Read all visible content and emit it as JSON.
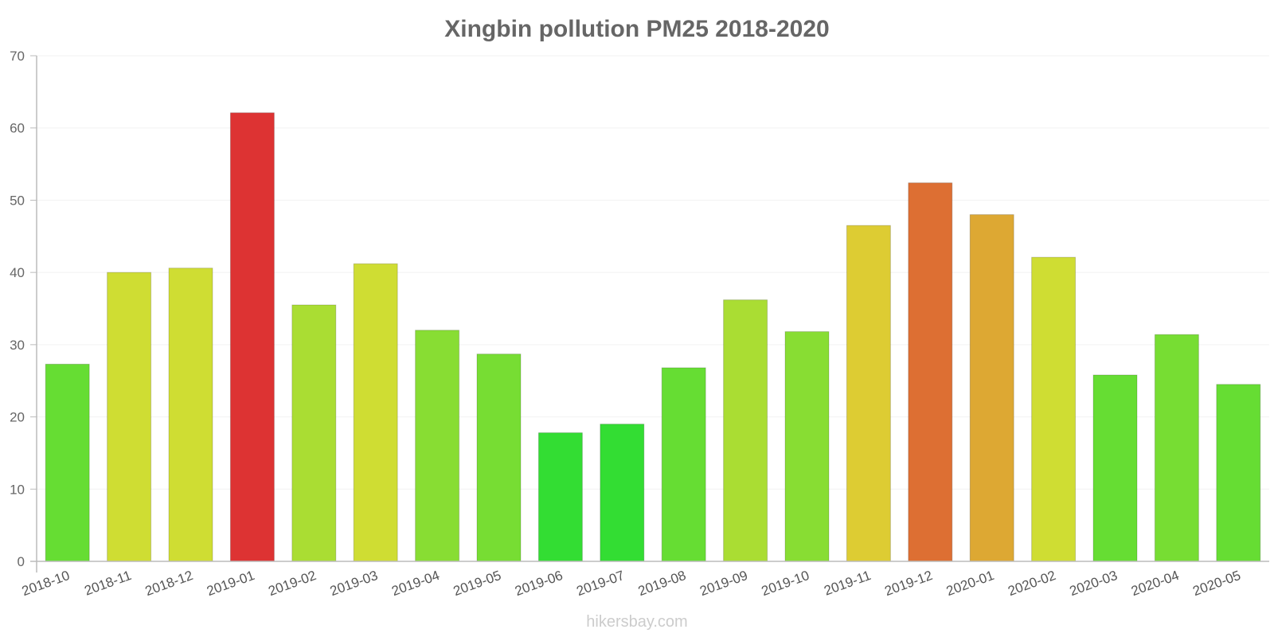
{
  "chart_data": {
    "type": "bar",
    "title": "Xingbin pollution PM25 2018-2020",
    "xlabel": "",
    "ylabel": "",
    "ylim": [
      0,
      70
    ],
    "yticks": [
      0,
      10,
      20,
      30,
      40,
      50,
      60,
      70
    ],
    "grid": true,
    "categories": [
      "2018-10",
      "2018-11",
      "2018-12",
      "2019-01",
      "2019-02",
      "2019-03",
      "2019-04",
      "2019-05",
      "2019-06",
      "2019-07",
      "2019-08",
      "2019-09",
      "2019-10",
      "2019-11",
      "2019-12",
      "2020-01",
      "2020-02",
      "2020-03",
      "2020-04",
      "2020-05"
    ],
    "values": [
      27.3,
      40.0,
      40.6,
      62.1,
      35.5,
      41.2,
      32.0,
      28.7,
      17.8,
      19.0,
      26.8,
      36.2,
      31.8,
      46.5,
      52.4,
      48.0,
      42.1,
      25.8,
      31.4,
      24.5
    ],
    "colors": [
      "#66dd33",
      "#cfdd33",
      "#cfdd33",
      "#dd3333",
      "#aadd33",
      "#cfdd33",
      "#88dd33",
      "#77dd33",
      "#33dd33",
      "#33dd33",
      "#66dd33",
      "#aadd33",
      "#88dd33",
      "#ddcc33",
      "#dd6f33",
      "#dda833",
      "#cfdd33",
      "#66dd33",
      "#77dd33",
      "#66dd33"
    ]
  },
  "watermark": "hikersbay.com"
}
